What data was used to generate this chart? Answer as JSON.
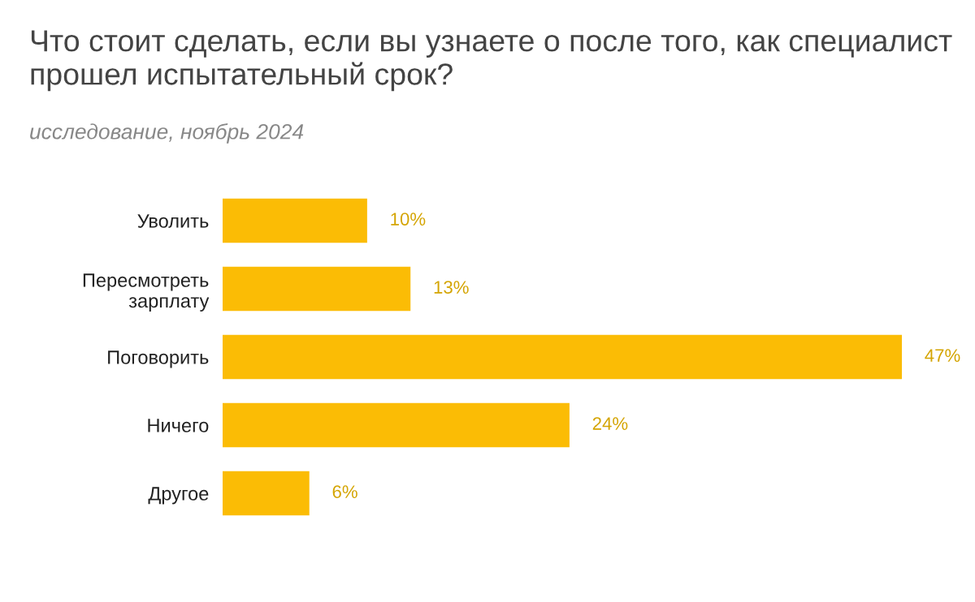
{
  "chart_data": {
    "type": "bar",
    "orientation": "horizontal",
    "title": "Что стоит сделать, если вы узнаете о после того, как специалист прошел испытательный срок?",
    "subtitle": "исследование, ноябрь 2024",
    "categories": [
      "Уволить",
      "Пересмотреть\nзарплату",
      "Поговорить",
      "Ничего",
      "Другое"
    ],
    "values": [
      10,
      13,
      47,
      24,
      6
    ],
    "value_labels": [
      "10%",
      "13%",
      "47%",
      "24%",
      "6%"
    ],
    "color": "#fbbc05",
    "grid": false,
    "legend": false
  }
}
